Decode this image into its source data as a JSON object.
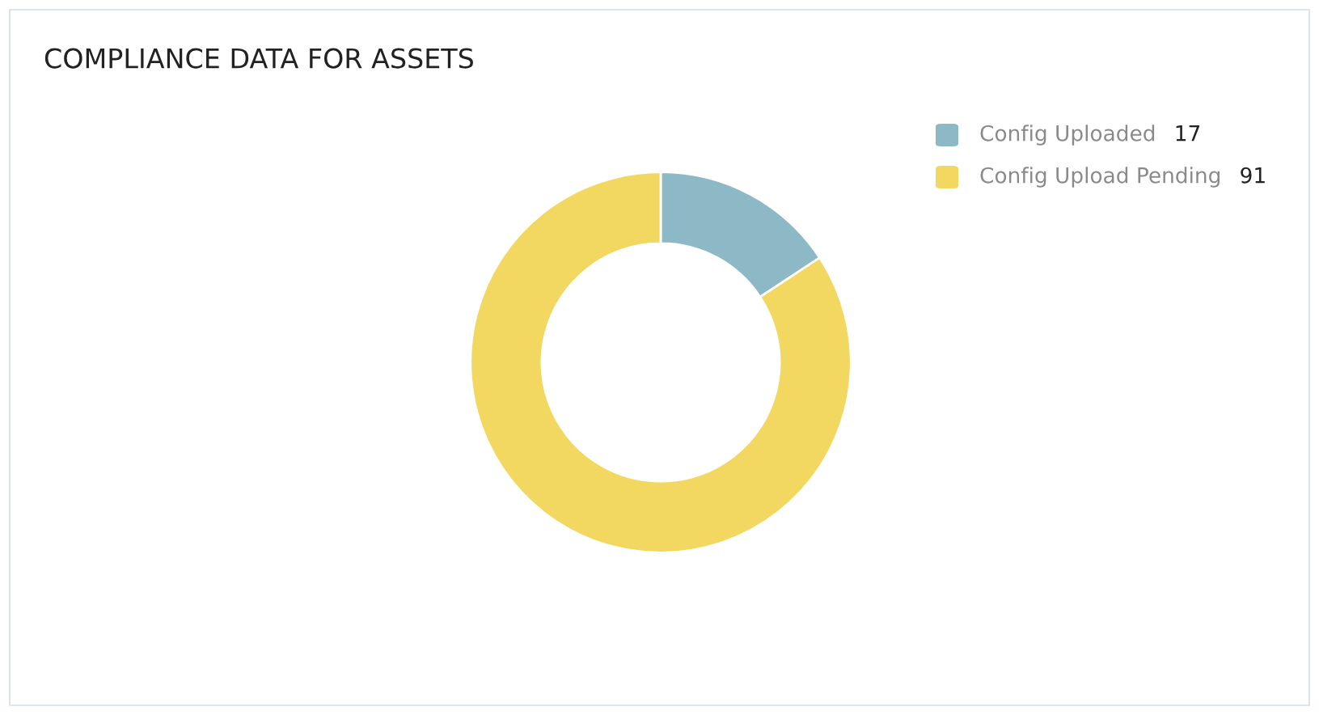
{
  "chart_data": {
    "type": "donut",
    "title": "COMPLIANCE DATA FOR ASSETS",
    "categories": [
      "Config Uploaded",
      "Config Upload Pending"
    ],
    "values": [
      17,
      91
    ],
    "colors": [
      "#8db9c7",
      "#f2d861"
    ],
    "legend": "top right",
    "data_labels": true
  }
}
